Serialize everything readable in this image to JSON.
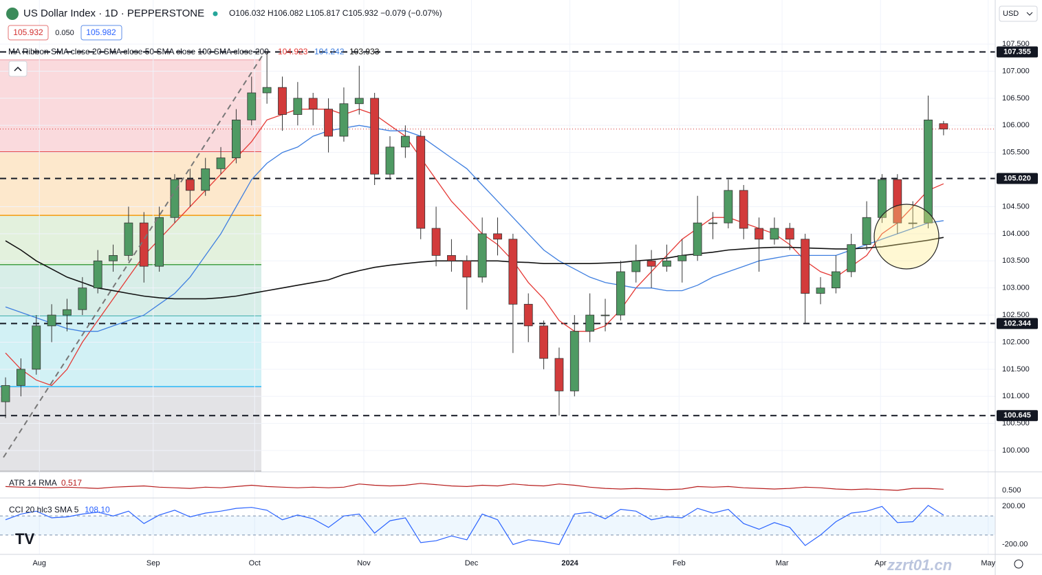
{
  "header": {
    "symbol": "US Dollar Index · 1D · PEPPERSTONE",
    "ohlc": "O106.032 H106.082 L105.817 C105.932 −0.079 (−0.07%)",
    "spread": "0.050",
    "ask": "105.982",
    "currency": "USD",
    "watermark": "zzrt01.cn"
  },
  "chart_data": [
    {
      "type": "candlestick",
      "indicator_label": "MA Ribbon SMA close 20 SMA close 50 SMA close 100 SMA close 200",
      "up_color": "#4f9a63",
      "down_color": "#d23b3b",
      "open": [
        100.9,
        101.2,
        101.5,
        102.3,
        102.5,
        102.6,
        103.0,
        103.5,
        103.6,
        104.2,
        103.4,
        104.3,
        105.0,
        104.8,
        105.2,
        105.4,
        106.1,
        106.6,
        106.7,
        106.2,
        106.5,
        106.3,
        105.8,
        106.4,
        106.5,
        105.1,
        105.6,
        105.8,
        104.1,
        103.6,
        103.5,
        103.2,
        104.0,
        103.9,
        102.7,
        102.3,
        101.7,
        101.1,
        102.2,
        102.5,
        102.5,
        103.3,
        103.5,
        103.4,
        103.5,
        103.6,
        104.2,
        104.2,
        104.8,
        104.1,
        103.9,
        104.1,
        103.9,
        102.9,
        103.0,
        103.3,
        103.8,
        104.3,
        105.0,
        104.2,
        104.2,
        106.032
      ],
      "high": [
        101.35,
        101.7,
        102.5,
        102.7,
        102.8,
        103.2,
        103.7,
        103.8,
        104.5,
        104.4,
        104.5,
        105.1,
        105.2,
        105.4,
        105.6,
        106.3,
        106.9,
        107.355,
        106.9,
        106.8,
        106.6,
        106.5,
        106.7,
        107.1,
        106.6,
        105.8,
        106.0,
        105.9,
        104.5,
        103.9,
        103.6,
        104.3,
        104.3,
        104.0,
        102.9,
        102.4,
        101.9,
        102.5,
        102.9,
        102.8,
        103.5,
        103.8,
        103.7,
        103.8,
        103.9,
        104.7,
        104.4,
        105.0,
        104.9,
        104.3,
        104.3,
        104.2,
        104.0,
        103.2,
        103.6,
        104.0,
        104.6,
        105.1,
        105.1,
        104.6,
        106.55,
        106.082
      ],
      "low": [
        100.6,
        101.0,
        101.4,
        102.0,
        102.2,
        102.5,
        102.9,
        103.3,
        103.5,
        103.1,
        103.3,
        104.2,
        104.5,
        104.7,
        105.1,
        105.3,
        106.0,
        106.4,
        105.9,
        106.0,
        106.0,
        105.5,
        105.7,
        106.2,
        104.9,
        105.0,
        105.4,
        103.9,
        103.4,
        103.3,
        102.6,
        103.1,
        103.6,
        101.8,
        102.0,
        101.5,
        100.645,
        101.0,
        102.0,
        102.2,
        102.4,
        103.1,
        103.0,
        103.3,
        103.1,
        103.5,
        103.9,
        104.1,
        103.9,
        103.3,
        103.8,
        103.7,
        102.344,
        102.7,
        102.9,
        103.2,
        103.7,
        104.2,
        104.0,
        104.1,
        104.1,
        105.817
      ],
      "close": [
        101.2,
        101.5,
        102.3,
        102.5,
        102.6,
        103.0,
        103.5,
        103.6,
        104.2,
        103.4,
        104.3,
        105.0,
        104.8,
        105.2,
        105.4,
        106.1,
        106.6,
        106.7,
        106.2,
        106.5,
        106.3,
        105.8,
        106.4,
        106.5,
        105.1,
        105.6,
        105.8,
        104.1,
        103.6,
        103.5,
        103.2,
        104.0,
        103.9,
        102.7,
        102.3,
        101.7,
        101.1,
        102.2,
        102.5,
        102.5,
        103.3,
        103.5,
        103.4,
        103.5,
        103.6,
        104.2,
        104.2,
        104.8,
        104.1,
        103.9,
        104.1,
        103.9,
        102.9,
        103.0,
        103.3,
        103.8,
        104.3,
        105.0,
        104.2,
        104.2,
        106.1,
        105.932
      ],
      "series": [
        {
          "color": "#e53935",
          "values": [
            101.8,
            101.5,
            101.3,
            101.2,
            101.5,
            102.0,
            102.4,
            102.8,
            103.2,
            103.6,
            103.9,
            104.2,
            104.5,
            104.8,
            105.1,
            105.4,
            105.7,
            106.1,
            106.2,
            106.3,
            106.3,
            106.3,
            106.2,
            106.3,
            106.2,
            106.0,
            105.8,
            105.4,
            105.0,
            104.6,
            104.3,
            104.0,
            103.8,
            103.5,
            103.1,
            102.8,
            102.4,
            102.2,
            102.2,
            102.3,
            102.6,
            103.0,
            103.3,
            103.6,
            103.9,
            104.1,
            104.3,
            104.3,
            104.2,
            104.1,
            104.0,
            103.8,
            103.5,
            103.3,
            103.2,
            103.4,
            103.6,
            104.0,
            104.2,
            104.5,
            104.8,
            104.923
          ]
        },
        {
          "color": "#3f7fe0",
          "values": [
            102.65,
            102.55,
            102.45,
            102.35,
            102.25,
            102.2,
            102.2,
            102.3,
            102.4,
            102.5,
            102.7,
            102.9,
            103.2,
            103.6,
            104.0,
            104.5,
            105.0,
            105.3,
            105.5,
            105.6,
            105.8,
            105.9,
            105.95,
            106.0,
            105.95,
            105.9,
            105.9,
            105.8,
            105.6,
            105.4,
            105.2,
            104.9,
            104.6,
            104.3,
            104.0,
            103.7,
            103.5,
            103.35,
            103.2,
            103.1,
            103.05,
            103.0,
            103.0,
            102.95,
            102.95,
            103.05,
            103.2,
            103.3,
            103.4,
            103.5,
            103.55,
            103.6,
            103.6,
            103.6,
            103.6,
            103.7,
            103.8,
            103.9,
            104.0,
            104.1,
            104.2,
            104.242
          ]
        },
        {
          "color": "#111111",
          "values": [
            103.87,
            103.7,
            103.5,
            103.35,
            103.2,
            103.1,
            103.0,
            102.95,
            102.9,
            102.85,
            102.82,
            102.8,
            102.8,
            102.8,
            102.82,
            102.85,
            102.9,
            102.95,
            103.0,
            103.05,
            103.1,
            103.15,
            103.25,
            103.32,
            103.38,
            103.42,
            103.45,
            103.48,
            103.5,
            103.5,
            103.5,
            103.5,
            103.5,
            103.48,
            103.47,
            103.45,
            103.45,
            103.45,
            103.45,
            103.46,
            103.47,
            103.5,
            103.52,
            103.55,
            103.6,
            103.63,
            103.66,
            103.7,
            103.72,
            103.74,
            103.75,
            103.75,
            103.74,
            103.73,
            103.72,
            103.72,
            103.74,
            103.76,
            103.8,
            103.84,
            103.88,
            103.933
          ]
        }
      ],
      "levels": [
        107.355,
        {
          "value": 105.02,
          "label": "105.020"
        },
        102.344,
        100.645
      ],
      "fib_levels": [
        107.21,
        105.51,
        104.34,
        103.43,
        102.49,
        101.18,
        99.62
      ],
      "fib_line_colors": [
        "#f3b6bd",
        "#e53935",
        "#f59b0b",
        "#43a047",
        "#26a69a",
        "#29b6f6",
        "#bdbdbd"
      ],
      "fib_fill_colors": [
        "#fadadd",
        "#fde8cc",
        "#e3f1dd",
        "#d8eee8",
        "#d2f1f5",
        "#e3e3e6"
      ],
      "xlim": [
        -0.36,
        64.36
      ],
      "ylim": [
        99.62,
        108.25
      ],
      "xticks": [
        {
          "value": 2.2,
          "label": "Aug"
        },
        {
          "value": 9.6,
          "label": "Sep"
        },
        {
          "value": 16.2,
          "label": "Oct"
        },
        {
          "value": 23.3,
          "label": "Nov"
        },
        {
          "value": 30.3,
          "label": "Dec"
        },
        {
          "value": 36.7,
          "label": "2024"
        },
        {
          "value": 43.8,
          "label": "Feb"
        },
        {
          "value": 50.5,
          "label": "Mar"
        },
        {
          "value": 56.9,
          "label": "Apr"
        },
        {
          "value": 63.9,
          "label": "May"
        }
      ],
      "yticks": [
        {
          "value": 100,
          "label": "100.000"
        },
        {
          "value": 100.5,
          "label": "100.500"
        },
        {
          "value": 101,
          "label": "101.000"
        },
        {
          "value": 101.5,
          "label": "101.500"
        },
        {
          "value": 102,
          "label": "102.000"
        },
        {
          "value": 102.5,
          "label": "102.500"
        },
        {
          "value": 103,
          "label": "103.000"
        },
        {
          "value": 103.5,
          "label": "103.500"
        },
        {
          "value": 104,
          "label": "104.000"
        },
        {
          "value": 104.5,
          "label": "104.500"
        },
        {
          "value": 105.5,
          "label": "105.500"
        },
        {
          "value": 106,
          "label": "106.000"
        },
        {
          "value": 106.5,
          "label": "106.500"
        },
        {
          "value": 107,
          "label": "107.000"
        },
        {
          "value": 107.5,
          "label": "107.500"
        }
      ]
    },
    {
      "type": "line",
      "label": "ATR 14 RMA",
      "color": "#b71c1c",
      "values": [
        0.56,
        0.55,
        0.55,
        0.54,
        0.55,
        0.54,
        0.53,
        0.55,
        0.56,
        0.57,
        0.55,
        0.54,
        0.53,
        0.55,
        0.54,
        0.56,
        0.58,
        0.56,
        0.55,
        0.54,
        0.55,
        0.54,
        0.55,
        0.6,
        0.58,
        0.57,
        0.58,
        0.61,
        0.59,
        0.57,
        0.56,
        0.58,
        0.57,
        0.6,
        0.58,
        0.57,
        0.6,
        0.58,
        0.55,
        0.53,
        0.52,
        0.53,
        0.52,
        0.51,
        0.52,
        0.56,
        0.55,
        0.56,
        0.54,
        0.53,
        0.52,
        0.53,
        0.55,
        0.54,
        0.52,
        0.51,
        0.52,
        0.51,
        0.5,
        0.53,
        0.53,
        0.517
      ],
      "ylim": [
        0.4,
        0.75
      ],
      "yticks": [
        {
          "value": 0.5,
          "label": "0.500"
        }
      ]
    },
    {
      "type": "line",
      "label": "CCI 20 hlc3 SMA 5",
      "color": "#2962ff",
      "current_label": "108.10",
      "values": [
        60,
        120,
        150,
        80,
        90,
        120,
        140,
        100,
        150,
        20,
        110,
        160,
        90,
        130,
        150,
        180,
        190,
        160,
        60,
        110,
        70,
        -20,
        100,
        120,
        -80,
        50,
        80,
        -180,
        -160,
        -110,
        -150,
        120,
        60,
        -200,
        -150,
        -170,
        -200,
        120,
        140,
        70,
        170,
        150,
        60,
        90,
        80,
        180,
        130,
        170,
        20,
        -40,
        30,
        -20,
        -210,
        -100,
        40,
        130,
        150,
        200,
        30,
        40,
        210,
        108.1
      ],
      "bands": [
        100,
        -100
      ],
      "ylim": [
        -260,
        260
      ],
      "yticks": [
        {
          "value": 200,
          "label": "200.00"
        },
        {
          "value": -200,
          "label": "-200.00"
        }
      ]
    }
  ]
}
